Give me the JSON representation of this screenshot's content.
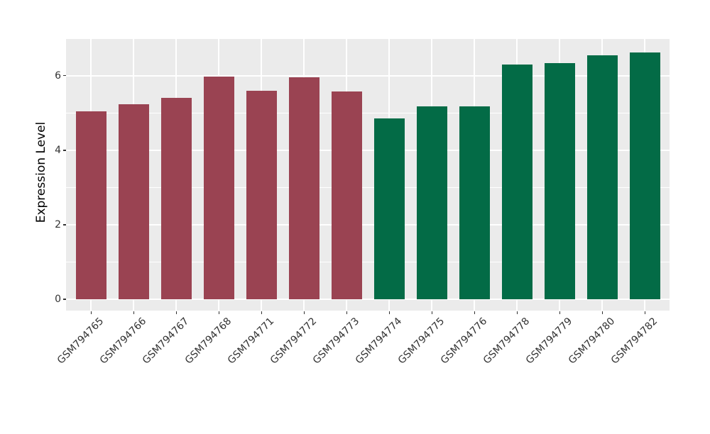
{
  "chart_data": {
    "type": "bar",
    "title": "",
    "xlabel": "",
    "ylabel": "Expression Level",
    "ylim": [
      0,
      7
    ],
    "yticks": [
      0,
      2,
      4,
      6
    ],
    "minor_gridlines": [
      1,
      3,
      5
    ],
    "grid": "white major+minor gridlines on gray panel",
    "legend_position": "none",
    "categories": [
      "GSM794765",
      "GSM794766",
      "GSM794767",
      "GSM794768",
      "GSM794771",
      "GSM794772",
      "GSM794773",
      "GSM794774",
      "GSM794775",
      "GSM794776",
      "GSM794778",
      "GSM794779",
      "GSM794780",
      "GSM794782"
    ],
    "values": [
      5.05,
      5.23,
      5.4,
      5.98,
      5.6,
      5.96,
      5.58,
      4.86,
      5.18,
      5.18,
      6.3,
      6.34,
      6.55,
      6.63
    ],
    "bar_groups": [
      "red",
      "red",
      "red",
      "red",
      "red",
      "red",
      "red",
      "green",
      "green",
      "green",
      "green",
      "green",
      "green",
      "green"
    ],
    "colors": {
      "red": "#9A4352",
      "green": "#036B46",
      "panel_bg": "#EBEBEB",
      "grid": "#FFFFFF",
      "tick_text": "#333333",
      "title_text": "#000000"
    }
  }
}
